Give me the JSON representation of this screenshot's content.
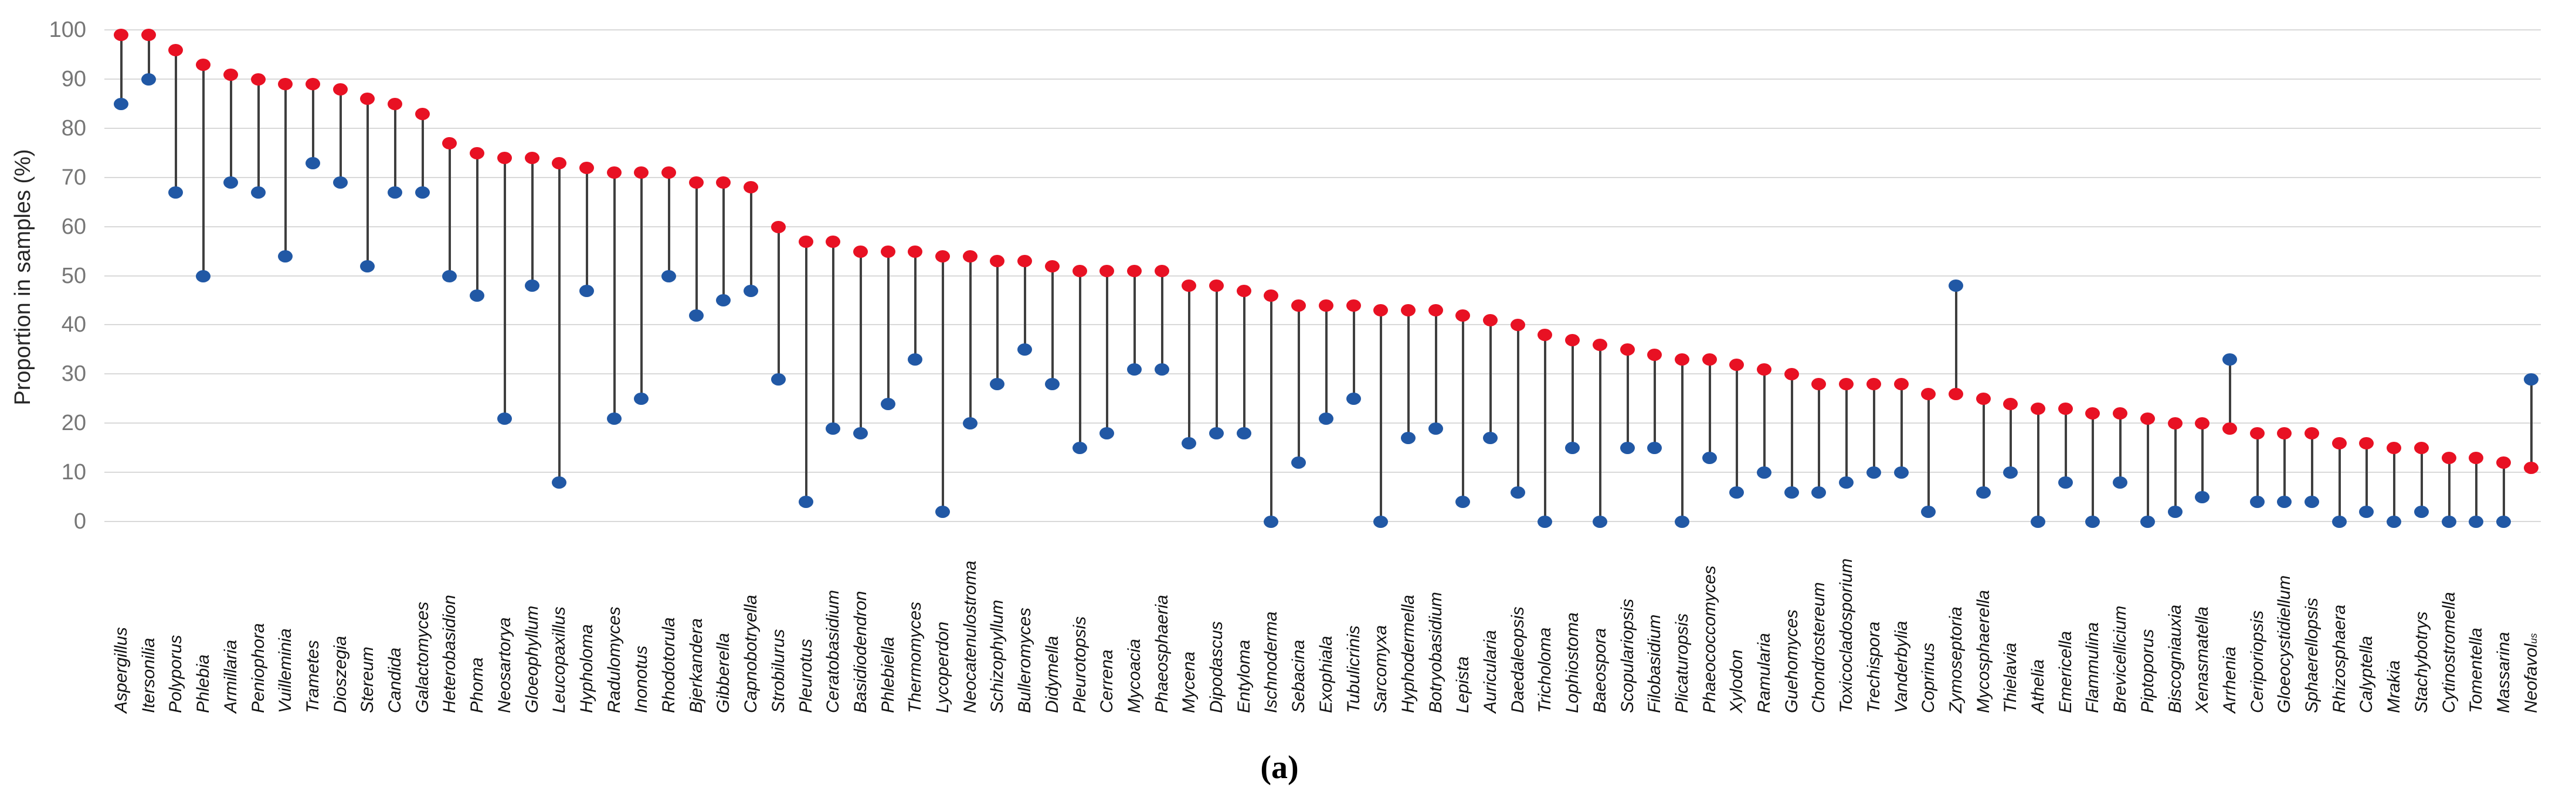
{
  "figure": {
    "caption": "(a)"
  },
  "colors": {
    "red_marker": "#e81123",
    "blue_marker": "#2158a5",
    "connector_line": "#3f3f3f",
    "gridline": "#d9d9d9",
    "tick_text": "#767676",
    "label_text": "#111111",
    "axis_title_text": "#262626"
  },
  "chart_data": {
    "type": "scatter",
    "subtype": "dumbbell-lollipop",
    "title": "",
    "xlabel": "",
    "ylabel": "Proportion in samples (%)",
    "ylim": [
      0,
      100
    ],
    "yticks": [
      0,
      10,
      20,
      30,
      40,
      50,
      60,
      70,
      80,
      90,
      100
    ],
    "grid": true,
    "legend": "none",
    "categories": [
      "Aspergillus",
      "Itersonilia",
      "Polyporus",
      "Phlebia",
      "Armillaria",
      "Peniophora",
      "Vuilleminia",
      "Trametes",
      "Dioszegia",
      "Stereum",
      "Candida",
      "Galactomyces",
      "Heterobasidion",
      "Phoma",
      "Neosartorya",
      "Gloeophyllum",
      "Leucopaxillus",
      "Hypholoma",
      "Radulomyces",
      "Inonotus",
      "Rhodotorula",
      "Bjerkandera",
      "Gibberella",
      "Capnobotryella",
      "Strobilurus",
      "Pleurotus",
      "Ceratobasidium",
      "Basidiodendron",
      "Phlebiella",
      "Thermomyces",
      "Lycoperdon",
      "Neocatenulostroma",
      "Schizophyllum",
      "Bulleromyces",
      "Didymella",
      "Pleurotopsis",
      "Cerrena",
      "Mycoacia",
      "Phaeosphaeria",
      "Mycena",
      "Dipodascus",
      "Entyloma",
      "Ischnoderma",
      "Sebacina",
      "Exophiala",
      "Tubulicrinis",
      "Sarcomyxa",
      "Hyphodermella",
      "Botryobasidium",
      "Lepista",
      "Auricularia",
      "Daedaleopsis",
      "Tricholoma",
      "Lophiostoma",
      "Baeospora",
      "Scopulariopsis",
      "Filobasidium",
      "Plicaturopsis",
      "Phaeococcomyces",
      "Xylodon",
      "Ramularia",
      "Guehomyces",
      "Chondrostereum",
      "Toxicocladosporium",
      "Trechispora",
      "Vanderbylia",
      "Coprinus",
      "Zymoseptoria",
      "Mycosphaerella",
      "Thielavia",
      "Athelia",
      "Emericella",
      "Flammulina",
      "Brevicellicium",
      "Piptoporus",
      "Biscogniauxia",
      "Xenasmatella",
      "Arrhenia",
      "Ceriporiopsis",
      "Gloeocystidiellum",
      "Sphaerellopsis",
      "Rhizosphaera",
      "Calyptella",
      "Mrakia",
      "Stachybotrys",
      "Cytinostromella",
      "Tomentella",
      "Massarina",
      "Neofavolus"
    ],
    "label_display_overrides": {
      "88": {
        "main": "Neofavol",
        "small_suffix": "us"
      }
    },
    "series": [
      {
        "name": "red-upper",
        "color": "#e81123",
        "values": [
          99,
          99,
          96,
          93,
          91,
          90,
          89,
          89,
          88,
          86,
          85,
          83,
          77,
          75,
          74,
          74,
          73,
          72,
          71,
          71,
          71,
          69,
          69,
          68,
          60,
          57,
          57,
          55,
          55,
          55,
          54,
          54,
          53,
          53,
          52,
          51,
          51,
          51,
          51,
          48,
          48,
          47,
          46,
          44,
          44,
          44,
          43,
          43,
          43,
          42,
          41,
          40,
          38,
          37,
          36,
          35,
          34,
          33,
          33,
          32,
          31,
          30,
          28,
          28,
          28,
          28,
          26,
          26,
          25,
          24,
          23,
          23,
          22,
          22,
          21,
          20,
          20,
          19,
          18,
          18,
          18,
          16,
          16,
          15,
          15,
          13,
          13,
          12,
          11
        ]
      },
      {
        "name": "blue-lower",
        "color": "#2158a5",
        "values": [
          85,
          90,
          67,
          50,
          69,
          67,
          54,
          73,
          69,
          52,
          67,
          67,
          50,
          46,
          21,
          48,
          8,
          47,
          21,
          25,
          50,
          42,
          45,
          47,
          29,
          4,
          19,
          18,
          24,
          33,
          2,
          20,
          28,
          35,
          28,
          15,
          18,
          31,
          31,
          16,
          18,
          18,
          0,
          12,
          21,
          25,
          0,
          17,
          19,
          4,
          17,
          6,
          0,
          15,
          0,
          15,
          15,
          0,
          13,
          6,
          10,
          6,
          6,
          8,
          10,
          10,
          2,
          48,
          6,
          10,
          0,
          8,
          0,
          8,
          0,
          2,
          5,
          33,
          4,
          4,
          4,
          0,
          2,
          0,
          2,
          0,
          0,
          0,
          29
        ]
      }
    ]
  }
}
